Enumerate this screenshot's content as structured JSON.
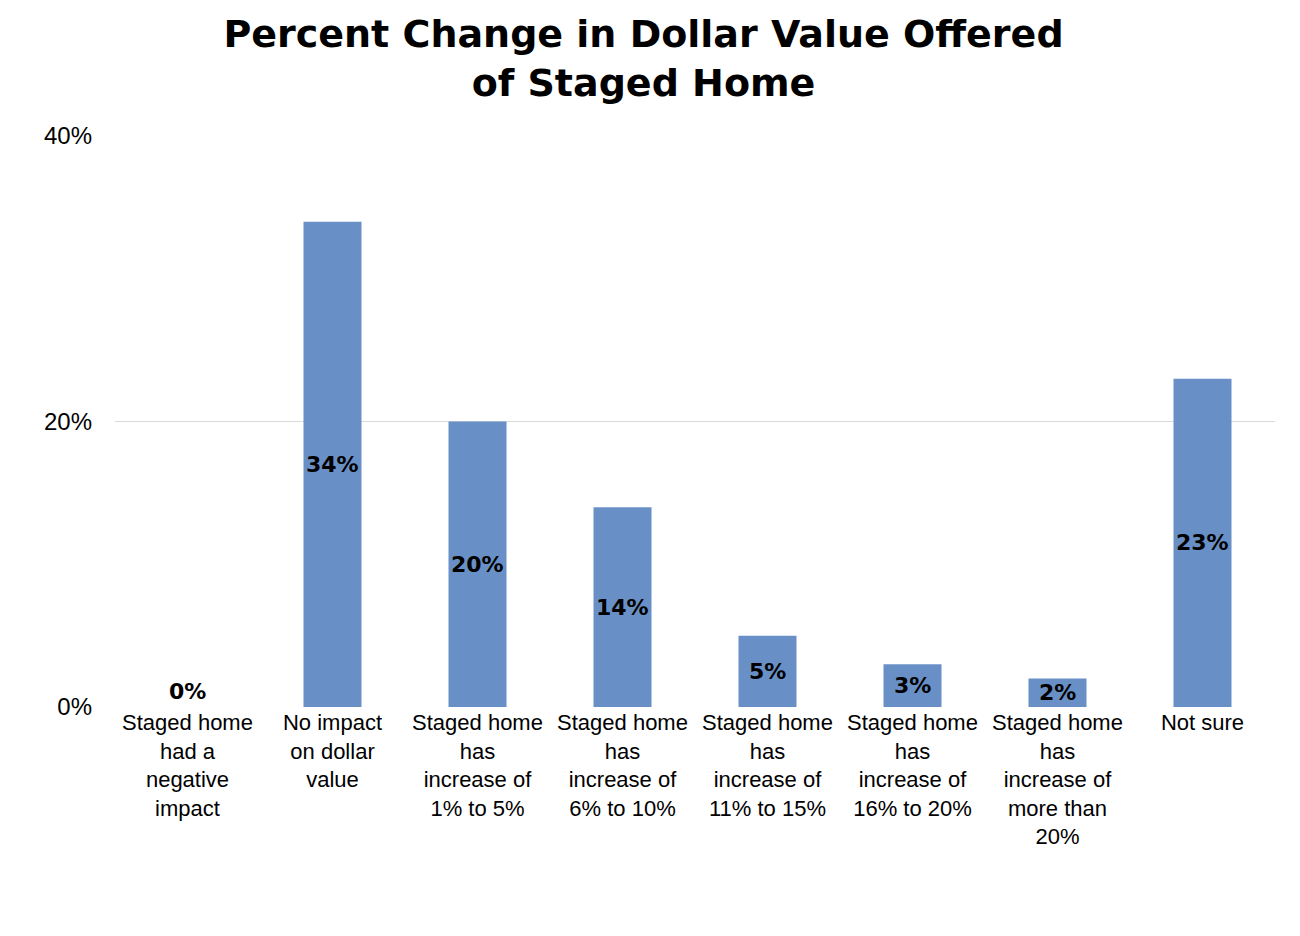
{
  "chart_data": {
    "type": "bar",
    "title": "Percent Change in Dollar Value Offered of Staged Home",
    "categories": [
      "Staged home had a negative impact",
      "No impact on dollar value",
      "Staged home has increase of 1% to 5%",
      "Staged home has increase of 6% to 10%",
      "Staged home has increase of 11% to 15%",
      "Staged home has increase of 16% to 20%",
      "Staged home has increase of more than 20%",
      "Not sure"
    ],
    "values": [
      0,
      34,
      20,
      14,
      5,
      3,
      2,
      23
    ],
    "value_labels": [
      "0%",
      "34%",
      "20%",
      "14%",
      "5%",
      "3%",
      "2%",
      "23%"
    ],
    "color": "#6990c6",
    "ylim": [
      0,
      40
    ],
    "yticks": [
      {
        "value": 0,
        "label": "0%"
      },
      {
        "value": 20,
        "label": "20%"
      },
      {
        "value": 40,
        "label": "40%"
      }
    ],
    "grid": true,
    "data_labels": true
  }
}
